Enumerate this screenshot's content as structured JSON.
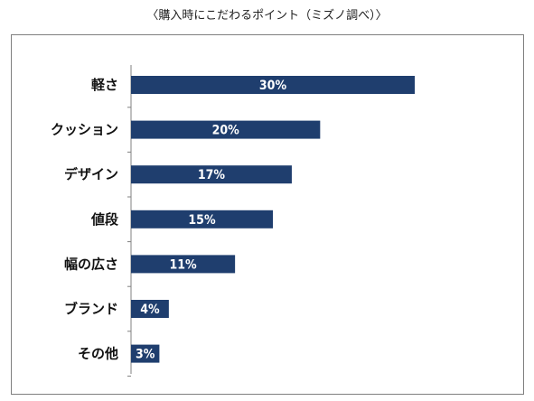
{
  "chart_data": {
    "type": "bar",
    "orientation": "horizontal",
    "title": "〈購入時にこだわるポイント（ミズノ調べ）〉",
    "categories": [
      "軽さ",
      "クッション",
      "デザイン",
      "値段",
      "幅の広さ",
      "ブランド",
      "その他"
    ],
    "values": [
      30,
      20,
      17,
      15,
      11,
      4,
      3
    ],
    "value_labels": [
      "30%",
      "20%",
      "17%",
      "15%",
      "11%",
      "4%",
      "3%"
    ],
    "xlim": [
      0,
      40
    ],
    "grid": false,
    "bar_color": "#1f3e6e",
    "axis_color": "#808080",
    "label_color": "#ffffff"
  }
}
